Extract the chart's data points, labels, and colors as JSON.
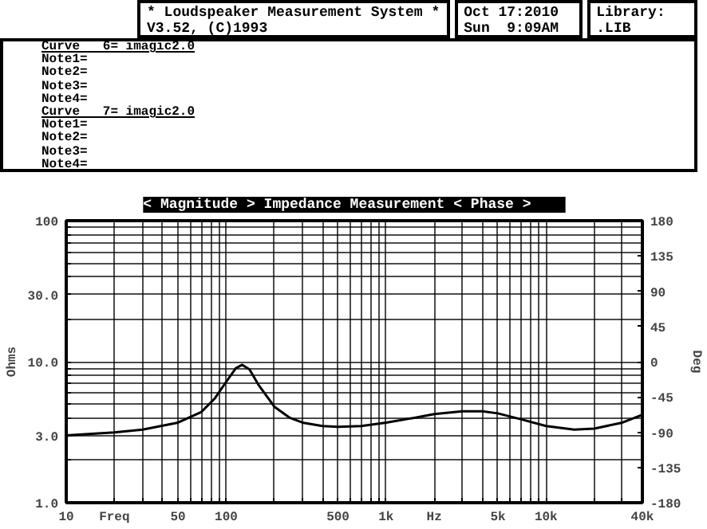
{
  "chart_data": {
    "type": "line",
    "title": "< Magnitude >   Impedance Measurement   < Phase >",
    "xlabel": null,
    "ylabel": "Ohms",
    "y2label": "Deg",
    "annotations": [
      "* Loudspeaker Measurement System *",
      "V3.52, (C)1993",
      "Oct 17:2010",
      "Sun  9:09AM",
      "Library:",
      ".LIB",
      "Curve   6= imagic2.0",
      "Note1=",
      "Note2=",
      "Note3=",
      "Note4=",
      "Curve   7= imagic2.0",
      "Note1=",
      "Note2=",
      "Note3=",
      "Note4="
    ],
    "log": "xy",
    "grid": true,
    "marker": "none",
    "line_style": "solid",
    "xlim": [
      10,
      40000
    ],
    "ylim": [
      1,
      100
    ],
    "y2lim": [
      -180,
      180
    ],
    "xticks": [
      10,
      {
        "value": 20,
        "label": "Freq"
      },
      {
        "value": 30,
        "label": null
      },
      {
        "value": 40,
        "label": null
      },
      50,
      {
        "value": 60,
        "label": null
      },
      {
        "value": 70,
        "label": null
      },
      {
        "value": 80,
        "label": null
      },
      {
        "value": 90,
        "label": null
      },
      100,
      {
        "value": 200,
        "label": null
      },
      {
        "value": 300,
        "label": null
      },
      {
        "value": 400,
        "label": null
      },
      500,
      {
        "value": 600,
        "label": null
      },
      {
        "value": 700,
        "label": null
      },
      {
        "value": 800,
        "label": null
      },
      {
        "value": 900,
        "label": null
      },
      {
        "value": 1000,
        "label": "1k"
      },
      {
        "value": 2000,
        "label": "Hz"
      },
      {
        "value": 3000,
        "label": null
      },
      {
        "value": 4000,
        "label": null
      },
      {
        "value": 5000,
        "label": "5k"
      },
      {
        "value": 6000,
        "label": null
      },
      {
        "value": 7000,
        "label": null
      },
      {
        "value": 8000,
        "label": null
      },
      {
        "value": 9000,
        "label": null
      },
      {
        "value": 10000,
        "label": "10k"
      },
      {
        "value": 20000,
        "label": null
      },
      {
        "value": 30000,
        "label": null
      },
      {
        "value": 40000,
        "label": "40k"
      }
    ],
    "yticks": [
      {
        "value": 1,
        "label": "1.0"
      },
      {
        "value": 2,
        "label": null
      },
      {
        "value": 3,
        "label": "3.0"
      },
      {
        "value": 4,
        "label": null
      },
      {
        "value": 5,
        "label": null
      },
      {
        "value": 6,
        "label": null
      },
      {
        "value": 7,
        "label": null
      },
      {
        "value": 8,
        "label": null
      },
      {
        "value": 9,
        "label": null
      },
      {
        "value": 10,
        "label": "10.0"
      },
      {
        "value": 20,
        "label": null
      },
      {
        "value": 30,
        "label": "30.0"
      },
      {
        "value": 40,
        "label": null
      },
      {
        "value": 50,
        "label": null
      },
      {
        "value": 60,
        "label": null
      },
      {
        "value": 70,
        "label": null
      },
      {
        "value": 80,
        "label": null
      },
      {
        "value": 90,
        "label": null
      },
      100
    ],
    "y2ticks": [
      -180,
      -135,
      -90,
      -45,
      0,
      45,
      90,
      135,
      180
    ],
    "x": [
      10,
      20,
      30,
      50,
      70,
      85,
      100,
      115,
      126,
      140,
      160,
      200,
      250,
      300,
      400,
      500,
      700,
      1000,
      1500,
      2000,
      3000,
      4000,
      5000,
      7000,
      10000,
      15000,
      20000,
      30000,
      40000
    ],
    "series": [
      {
        "color": "#000000",
        "values": [
          3.0,
          3.15,
          3.3,
          3.7,
          4.4,
          5.5,
          7.2,
          9.0,
          9.5,
          8.8,
          6.8,
          4.8,
          4.0,
          3.7,
          3.5,
          3.45,
          3.5,
          3.7,
          4.0,
          4.25,
          4.45,
          4.45,
          4.3,
          3.9,
          3.5,
          3.3,
          3.35,
          3.7,
          4.2
        ]
      }
    ]
  }
}
